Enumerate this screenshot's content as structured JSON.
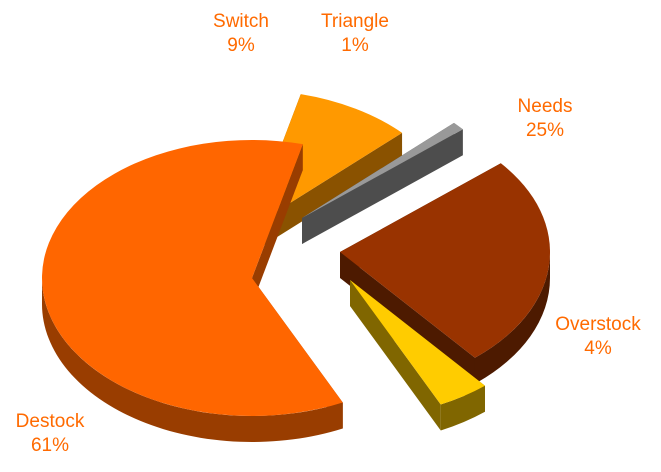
{
  "chart_data": {
    "type": "pie",
    "style": "3d-exploded",
    "title": "",
    "slices": [
      {
        "label": "Needs",
        "value": 25,
        "pct_text": "25%",
        "top": "#993300",
        "side": "#4d1a00"
      },
      {
        "label": "Overstock",
        "value": 4,
        "pct_text": "4%",
        "top": "#ffcc00",
        "side": "#806600"
      },
      {
        "label": "Destock",
        "value": 61,
        "pct_text": "61%",
        "top": "#ff6600",
        "side": "#993d00"
      },
      {
        "label": "Switch",
        "value": 9,
        "pct_text": "9%",
        "top": "#ff9900",
        "side": "#8a5200"
      },
      {
        "label": "Triangle",
        "value": 1,
        "pct_text": "1%",
        "top": "#999999",
        "side": "#4d4d4d"
      }
    ],
    "label_color": "#ff6a00"
  }
}
